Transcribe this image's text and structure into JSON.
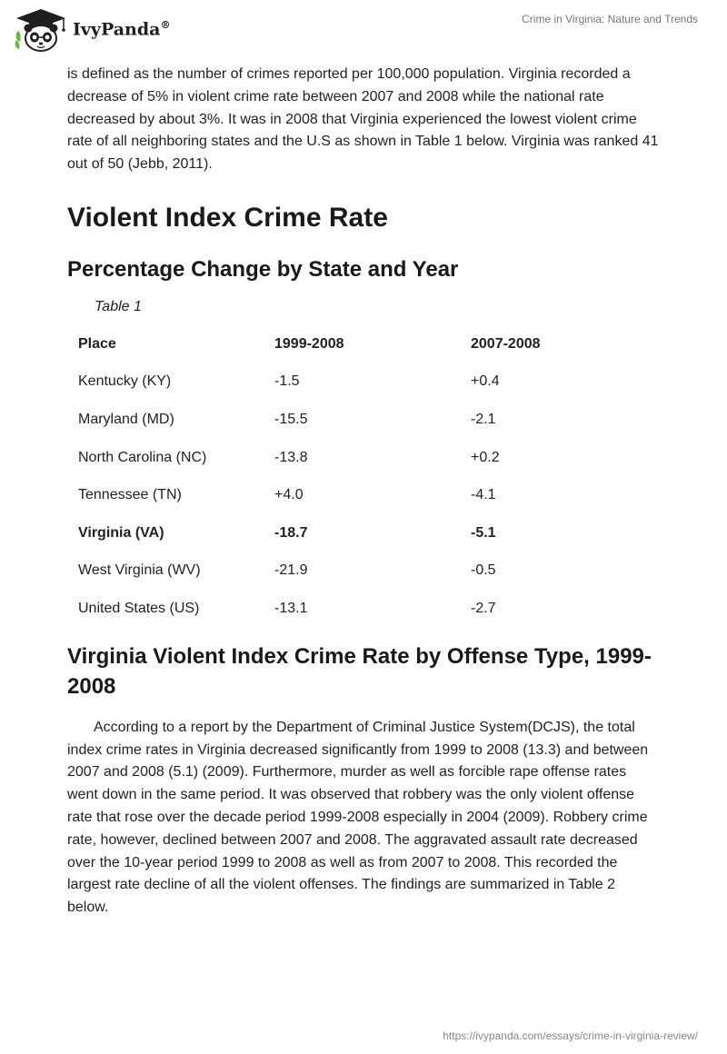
{
  "header": {
    "brand": "IvyPanda",
    "registered": "®",
    "doc_title": "Crime in Virginia: Nature and Trends"
  },
  "content": {
    "intro_paragraph": "is defined as the number of crimes reported per 100,000 population. Virginia recorded a decrease of 5% in violent crime rate between 2007 and 2008 while the national rate decreased by about 3%. It was in 2008 that Virginia experienced the lowest violent crime rate of all neighboring states and the U.S as shown in Table 1 below. Virginia was ranked 41 out of 50 (Jebb, 2011).",
    "heading_1": "Violent Index Crime Rate",
    "heading_2": "Percentage Change by State and Year",
    "table_caption": "Table 1",
    "table": {
      "headers": [
        "Place",
        "1999-2008",
        "2007-2008"
      ],
      "rows": [
        {
          "place": "Kentucky (KY)",
          "p1": "-1.5",
          "p2": "+0.4"
        },
        {
          "place": "Maryland (MD)",
          "p1": "-15.5",
          "p2": "-2.1"
        },
        {
          "place": "North Carolina (NC)",
          "p1": "-13.8",
          "p2": "+0.2"
        },
        {
          "place": "Tennessee (TN)",
          "p1": "+4.0",
          "p2": "-4.1"
        },
        {
          "place": "Virginia (VA)",
          "p1": "-18.7",
          "p2": "-5.1"
        },
        {
          "place": "West Virginia (WV)",
          "p1": "-21.9",
          "p2": "-0.5"
        },
        {
          "place": "United States (US)",
          "p1": "-13.1",
          "p2": "-2.7"
        }
      ]
    },
    "heading_3": "Virginia Violent Index Crime Rate by Offense Type, 1999-2008",
    "body_paragraph": "According to a report by the Department of Criminal Justice System(DCJS), the total index crime rates in Virginia decreased significantly from 1999 to 2008 (13.3) and between 2007 and 2008 (5.1) (2009). Furthermore, murder as well as forcible rape offense rates went down in the same period. It was observed that robbery was the only violent offense rate that rose over the decade period 1999-2008 especially in 2004 (2009). Robbery crime rate, however, declined between 2007 and 2008. The aggravated assault rate decreased over the 10-year period 1999 to 2008 as well as from 2007 to 2008. This recorded the largest rate decline of all the violent offenses. The findings are summarized in Table 2 below."
  },
  "footer": {
    "url": "https://ivypanda.com/essays/crime-in-virginia-review/"
  },
  "colors": {
    "logo_green": "#6db33f",
    "logo_dark": "#1f1f1f",
    "text": "#222222",
    "muted": "#777777"
  }
}
